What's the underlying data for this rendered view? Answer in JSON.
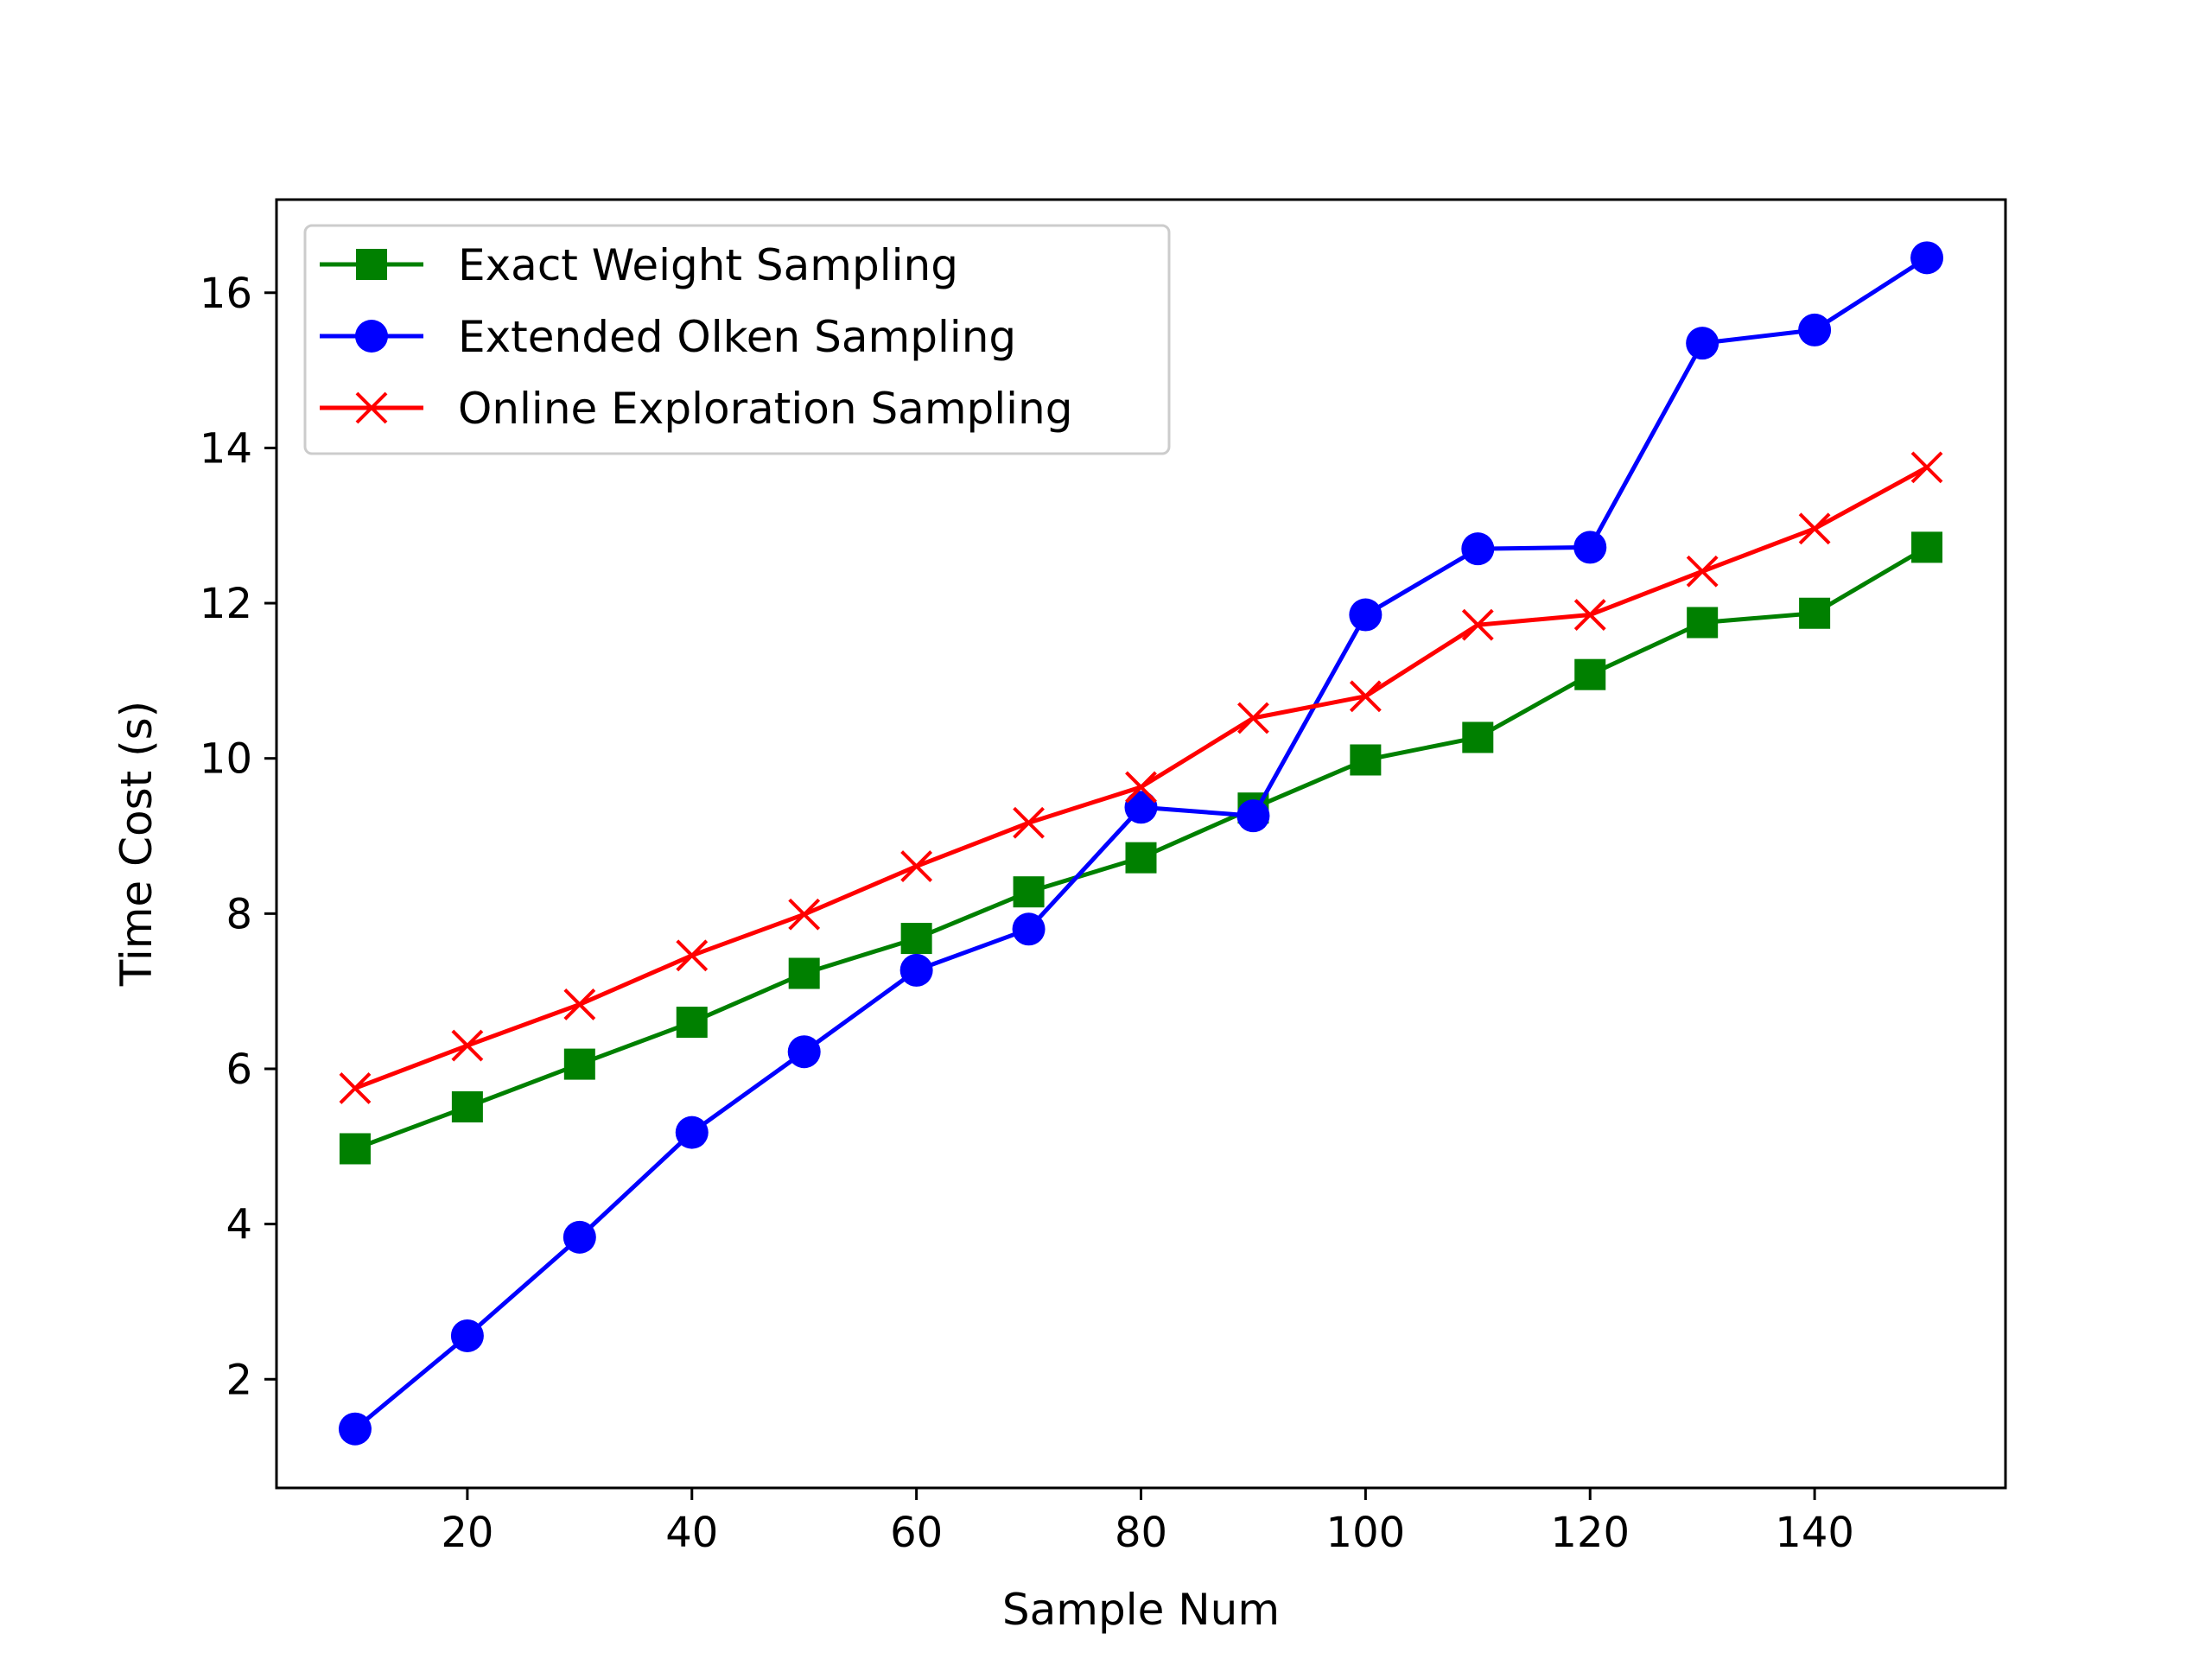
{
  "chart_data": {
    "type": "line",
    "title": "",
    "xlabel": "Sample Num",
    "ylabel": "Time Cost (s)",
    "xlim": [
      3,
      157
    ],
    "ylim": [
      0.6,
      17.2
    ],
    "xticks": [
      20,
      40,
      60,
      80,
      100,
      120,
      140
    ],
    "yticks": [
      2,
      4,
      6,
      8,
      10,
      12,
      14,
      16
    ],
    "xtick_labels": [
      "20",
      "40",
      "60",
      "80",
      "100",
      "120",
      "140"
    ],
    "ytick_labels": [
      "2",
      "4",
      "6",
      "8",
      "10",
      "12",
      "14",
      "16"
    ],
    "grid": false,
    "legend_position": "upper-left",
    "x": [
      10,
      20,
      30,
      40,
      50,
      60,
      70,
      80,
      90,
      100,
      110,
      120,
      130,
      140,
      150
    ],
    "series": [
      {
        "name": "Exact Weight Sampling",
        "color": "#008000",
        "marker": "square",
        "values": [
          4.97,
          5.51,
          6.06,
          6.6,
          7.23,
          7.68,
          8.28,
          8.72,
          9.36,
          9.98,
          10.27,
          11.08,
          11.75,
          11.87,
          12.72
        ]
      },
      {
        "name": "Extended Olken Sampling",
        "color": "#0000ff",
        "marker": "circle",
        "values": [
          1.36,
          2.56,
          3.83,
          5.18,
          6.22,
          7.27,
          7.8,
          9.37,
          9.26,
          11.85,
          12.7,
          12.72,
          15.35,
          15.52,
          16.45
        ]
      },
      {
        "name": "Online Exploration Sampling",
        "color": "#ff0000",
        "marker": "x",
        "values": [
          5.75,
          6.3,
          6.83,
          7.46,
          7.99,
          8.61,
          9.17,
          9.63,
          10.52,
          10.8,
          11.72,
          11.85,
          12.41,
          12.96,
          13.75
        ]
      }
    ]
  }
}
